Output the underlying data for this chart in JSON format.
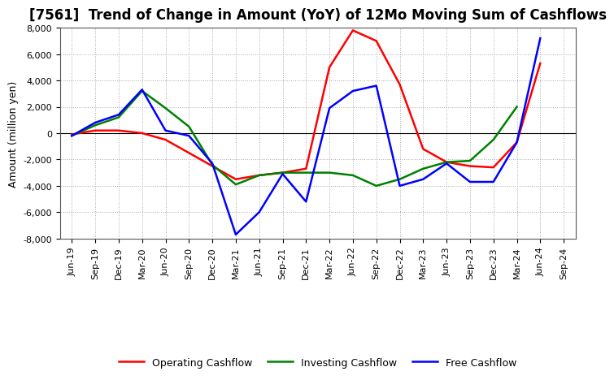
{
  "title": "[7561]  Trend of Change in Amount (YoY) of 12Mo Moving Sum of Cashflows",
  "ylabel": "Amount (million yen)",
  "xlabels": [
    "Jun-19",
    "Sep-19",
    "Dec-19",
    "Mar-20",
    "Jun-20",
    "Sep-20",
    "Dec-20",
    "Mar-21",
    "Jun-21",
    "Sep-21",
    "Dec-21",
    "Mar-22",
    "Jun-22",
    "Sep-22",
    "Dec-22",
    "Mar-23",
    "Jun-23",
    "Sep-23",
    "Dec-23",
    "Mar-24",
    "Jun-24",
    "Sep-24"
  ],
  "operating": [
    -100,
    200,
    200,
    0,
    -500,
    -1500,
    -2500,
    -3500,
    -3200,
    -3000,
    -2700,
    5000,
    7800,
    7000,
    3700,
    -1200,
    -2200,
    -2500,
    -2600,
    -700,
    5300,
    null
  ],
  "investing": [
    -200,
    600,
    1200,
    3200,
    1900,
    500,
    -2400,
    -3900,
    -3200,
    -3000,
    -3000,
    -3000,
    -3200,
    -4000,
    -3500,
    -2700,
    -2200,
    -2100,
    -500,
    2000,
    null,
    null
  ],
  "free": [
    -200,
    800,
    1400,
    3300,
    200,
    -200,
    -2300,
    -7700,
    -6000,
    -3100,
    -5200,
    1900,
    3200,
    3600,
    -4000,
    -3500,
    -2300,
    -3700,
    -3700,
    -700,
    7200,
    null
  ],
  "operating_color": "#FF0000",
  "investing_color": "#008000",
  "free_color": "#0000FF",
  "ylim": [
    -8000,
    8000
  ],
  "yticks": [
    -8000,
    -6000,
    -4000,
    -2000,
    0,
    2000,
    4000,
    6000,
    8000
  ],
  "background_color": "#FFFFFF",
  "grid_color": "#AAAAAA",
  "title_fontsize": 12,
  "axis_fontsize": 9,
  "legend_fontsize": 9,
  "tick_fontsize": 8
}
